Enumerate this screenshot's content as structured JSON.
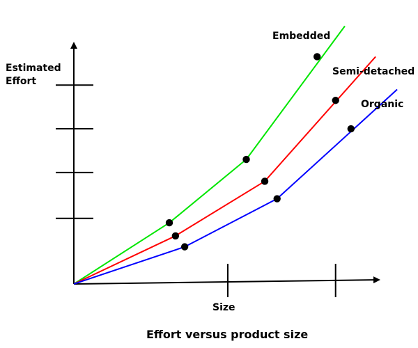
{
  "chart_data": {
    "type": "line",
    "title": "Effort versus product size",
    "xlabel": "Size",
    "ylabel": "Estimated\nEffort",
    "ylabel_lines": [
      "Estimated",
      "Effort"
    ],
    "xlim": [
      0,
      100
    ],
    "ylim": [
      0,
      100
    ],
    "x_ticks": [
      50,
      85
    ],
    "y_ticks": [
      30,
      51,
      71,
      91
    ],
    "grid": false,
    "legend": "inline-labels",
    "series": [
      {
        "name": "Embedded",
        "color": "#00e600",
        "points": [
          {
            "x": 0,
            "y": 0
          },
          {
            "x": 31,
            "y": 28
          },
          {
            "x": 56,
            "y": 57
          },
          {
            "x": 80,
            "y": 105,
            "marker": false
          },
          {
            "x": 75,
            "y": 99,
            "marker": true
          }
        ],
        "line": [
          [
            0,
            0
          ],
          [
            31,
            28
          ],
          [
            56,
            57
          ],
          [
            88,
            118
          ]
        ],
        "markers": [
          [
            31,
            28
          ],
          [
            56,
            57
          ],
          [
            79,
            104
          ]
        ]
      },
      {
        "name": "Semi-detached",
        "color": "#ff0000",
        "line": [
          [
            0,
            0
          ],
          [
            33,
            22
          ],
          [
            62,
            47
          ],
          [
            98,
            104
          ]
        ],
        "markers": [
          [
            33,
            22
          ],
          [
            62,
            47
          ],
          [
            85,
            84
          ]
        ]
      },
      {
        "name": "Organic",
        "color": "#0000ff",
        "line": [
          [
            0,
            0
          ],
          [
            36,
            17
          ],
          [
            66,
            39
          ],
          [
            105,
            89
          ]
        ],
        "markers": [
          [
            36,
            17
          ],
          [
            66,
            39
          ],
          [
            90,
            71
          ]
        ]
      }
    ]
  }
}
